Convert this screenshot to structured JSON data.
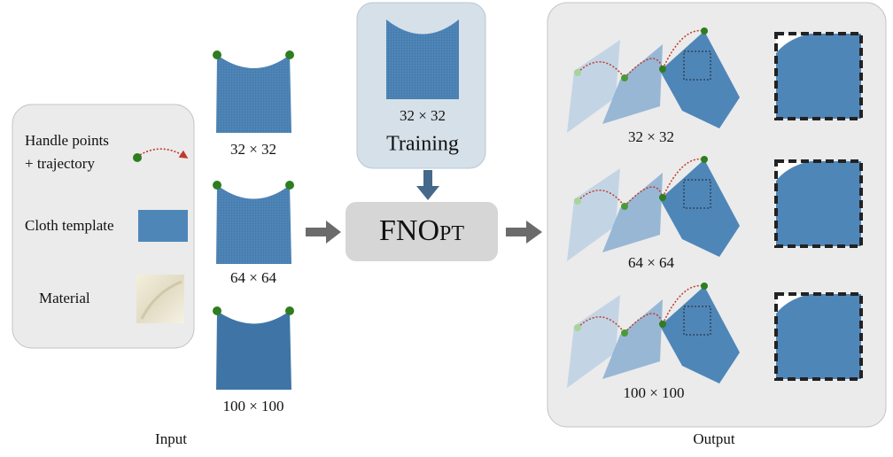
{
  "input_panel": {
    "legend": [
      {
        "label": "Handle points"
      },
      {
        "label": "+ trajectory"
      },
      {
        "label": "Cloth template"
      },
      {
        "label": "Material"
      }
    ],
    "resolutions": [
      "32 × 32",
      "64 × 64",
      "100 × 100"
    ],
    "caption": "Input"
  },
  "training": {
    "resolution": "32 × 32",
    "label": "Training"
  },
  "model": {
    "name": "FNOpt"
  },
  "output_panel": {
    "resolutions": [
      "32 × 32",
      "64 × 64",
      "100 × 100"
    ],
    "caption": "Output"
  }
}
